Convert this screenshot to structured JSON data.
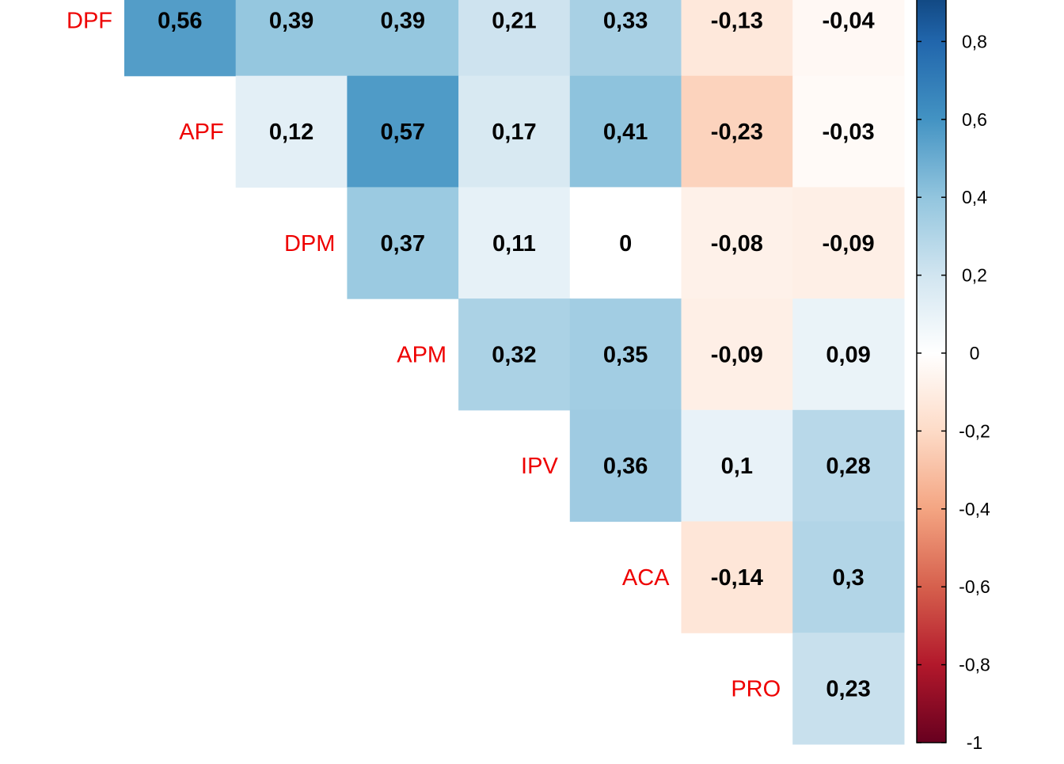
{
  "chart_data": {
    "type": "heatmap",
    "title": "",
    "xlabel": "",
    "ylabel": "",
    "row_labels": [
      "DPF",
      "APF",
      "DPM",
      "APM",
      "IPV",
      "ACA",
      "PRO"
    ],
    "rows": [
      {
        "label": "DPF",
        "values": [
          "0,56",
          "0,39",
          "0,39",
          "0,21",
          "0,33",
          "-0,13",
          "-0,04"
        ]
      },
      {
        "label": "APF",
        "values": [
          "0,12",
          "0,57",
          "0,17",
          "0,41",
          "-0,23",
          "-0,03"
        ]
      },
      {
        "label": "DPM",
        "values": [
          "0,37",
          "0,11",
          "0",
          "-0,08",
          "-0,09"
        ]
      },
      {
        "label": "APM",
        "values": [
          "0,32",
          "0,35",
          "-0,09",
          "0,09"
        ]
      },
      {
        "label": "IPV",
        "values": [
          "0,36",
          "0,1",
          "0,28"
        ]
      },
      {
        "label": "ACA",
        "values": [
          "-0,14",
          "0,3"
        ]
      },
      {
        "label": "PRO",
        "values": [
          "0,23"
        ]
      }
    ],
    "color_scale": {
      "min": -1,
      "max": 1,
      "ticks": [
        "0,8",
        "0,6",
        "0,4",
        "0,2",
        "0",
        "-0,2",
        "-0,4",
        "-0,6",
        "-0,8",
        "-1"
      ],
      "tick_values": [
        0.8,
        0.6,
        0.4,
        0.2,
        0,
        -0.2,
        -0.4,
        -0.6,
        -0.8,
        -1
      ],
      "colors": [
        "#67001f",
        "#b2182b",
        "#d6604d",
        "#f4a582",
        "#fddbc7",
        "#ffffff",
        "#d1e5f0",
        "#92c5de",
        "#4393c3",
        "#2166ac",
        "#053061"
      ]
    },
    "legend_position": "right",
    "grid": false
  }
}
